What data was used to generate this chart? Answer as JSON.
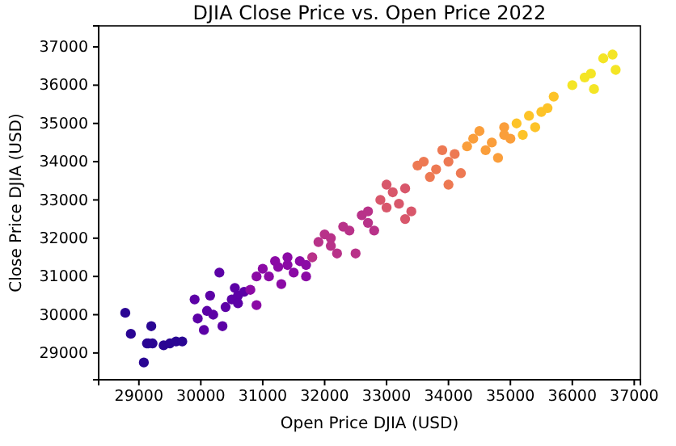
{
  "chart_data": {
    "type": "scatter",
    "title": "DJIA Close Price vs. Open Price 2022",
    "xlabel": "Open Price DJIA (USD)",
    "ylabel": "Close Price DJIA (USD)",
    "xlim": [
      28350,
      37100
    ],
    "ylim": [
      28300,
      37550
    ],
    "xticks": [
      29000,
      30000,
      31000,
      32000,
      33000,
      34000,
      35000,
      36000,
      37000
    ],
    "yticks": [
      29000,
      30000,
      31000,
      32000,
      33000,
      34000,
      35000,
      36000,
      37000
    ],
    "marker": "circle",
    "series": [
      {
        "color": "#2a0593",
        "x": [
          28780,
          28870,
          29130,
          29220,
          29080,
          29200,
          29400,
          29500,
          29600,
          29700,
          29150
        ],
        "values": [
          30050,
          29500,
          29250,
          29250,
          28750,
          29700,
          29200,
          29250,
          29300,
          29300,
          29250
        ]
      },
      {
        "color": "#5c01a6",
        "x": [
          30050,
          29950,
          29900,
          30100,
          30150,
          30200,
          30350,
          30400,
          30300,
          30500,
          30600,
          30700,
          30600,
          30550
        ],
        "values": [
          29600,
          29900,
          30400,
          30100,
          30500,
          30000,
          29700,
          30200,
          31100,
          30400,
          30500,
          30600,
          30300,
          30700
        ]
      },
      {
        "color": "#8b0aa5",
        "x": [
          30800,
          30900,
          30900,
          31000,
          31100,
          31200,
          31300,
          31250,
          31400,
          31400,
          31500,
          31600,
          31700,
          31700
        ],
        "values": [
          30650,
          30250,
          31000,
          31200,
          31000,
          31400,
          30800,
          31250,
          31300,
          31500,
          31100,
          31400,
          31300,
          31000
        ]
      },
      {
        "color": "#b83289",
        "x": [
          31800,
          31900,
          32000,
          32100,
          32200,
          32300,
          32100,
          32400,
          32500,
          32600,
          32700,
          32800,
          32700
        ],
        "values": [
          31500,
          31900,
          32100,
          32000,
          31600,
          32300,
          31800,
          32200,
          31600,
          32600,
          32700,
          32200,
          32400
        ]
      },
      {
        "color": "#d8576b",
        "x": [
          32900,
          33000,
          33100,
          33200,
          33300,
          33400,
          33000,
          33300
        ],
        "values": [
          33000,
          32800,
          33200,
          32900,
          33300,
          32700,
          33400,
          32500
        ]
      },
      {
        "color": "#ed7953",
        "x": [
          33500,
          33600,
          33700,
          33800,
          34000,
          34100,
          34200,
          33900,
          34000
        ],
        "values": [
          33900,
          34000,
          33600,
          33800,
          34000,
          34200,
          33700,
          34300,
          33400
        ]
      },
      {
        "color": "#fa9e3b",
        "x": [
          34300,
          34400,
          34600,
          34700,
          34800,
          34500,
          34900,
          34900,
          35000
        ],
        "values": [
          34400,
          34600,
          34300,
          34500,
          34100,
          34800,
          34900,
          34700,
          34600
        ]
      },
      {
        "color": "#fdc328",
        "x": [
          35100,
          35300,
          35500,
          35600,
          35200,
          35700,
          35400
        ],
        "values": [
          35000,
          35200,
          35300,
          35400,
          34700,
          35700,
          34900
        ]
      },
      {
        "color": "#f4e525",
        "x": [
          36000,
          36200,
          36300,
          36350,
          36500,
          36700,
          36650
        ],
        "values": [
          36000,
          36200,
          36300,
          35900,
          36700,
          36400,
          36800
        ]
      }
    ]
  }
}
